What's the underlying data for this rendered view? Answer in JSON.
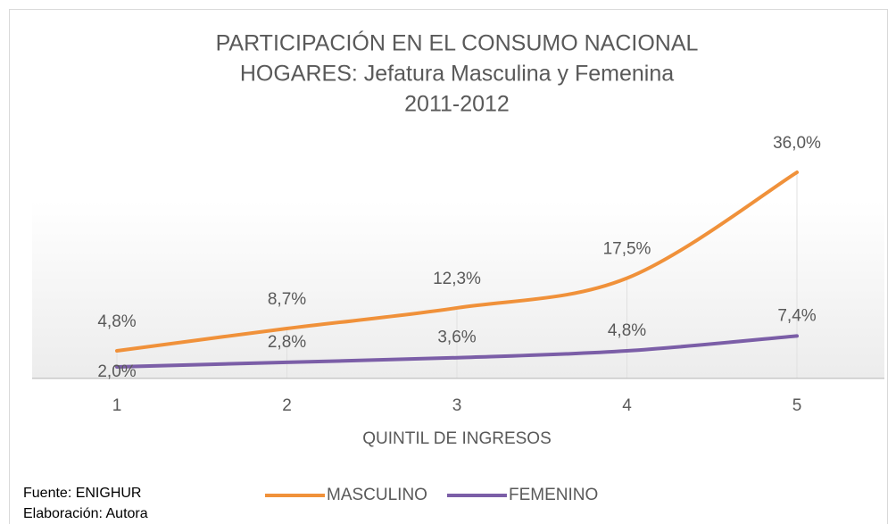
{
  "chart_data": {
    "type": "line",
    "title": [
      "PARTICIPACIÓN EN EL CONSUMO NACIONAL",
      "HOGARES: Jefatura Masculina y Femenina",
      "2011-2012"
    ],
    "x_label": "QUINTIL DE INGRESOS",
    "categories": [
      "1",
      "2",
      "3",
      "4",
      "5"
    ],
    "ylim": [
      0,
      40
    ],
    "series": [
      {
        "name": "MASCULINO",
        "color": "#f0913a",
        "values": [
          4.8,
          8.7,
          12.3,
          17.5,
          36.0
        ],
        "value_labels": [
          "4,8%",
          "8,7%",
          "12,3%",
          "17,5%",
          "36,0%"
        ]
      },
      {
        "name": "FEMENINO",
        "color": "#7b5ea7",
        "values": [
          2.0,
          2.8,
          3.6,
          4.8,
          7.4
        ],
        "value_labels": [
          "2,0%",
          "2,8%",
          "3,6%",
          "4,8%",
          "7,4%"
        ]
      }
    ],
    "legend": "bottom",
    "notes": [
      "Fuente: ENIGHUR",
      "Elaboración: Autora"
    ]
  }
}
